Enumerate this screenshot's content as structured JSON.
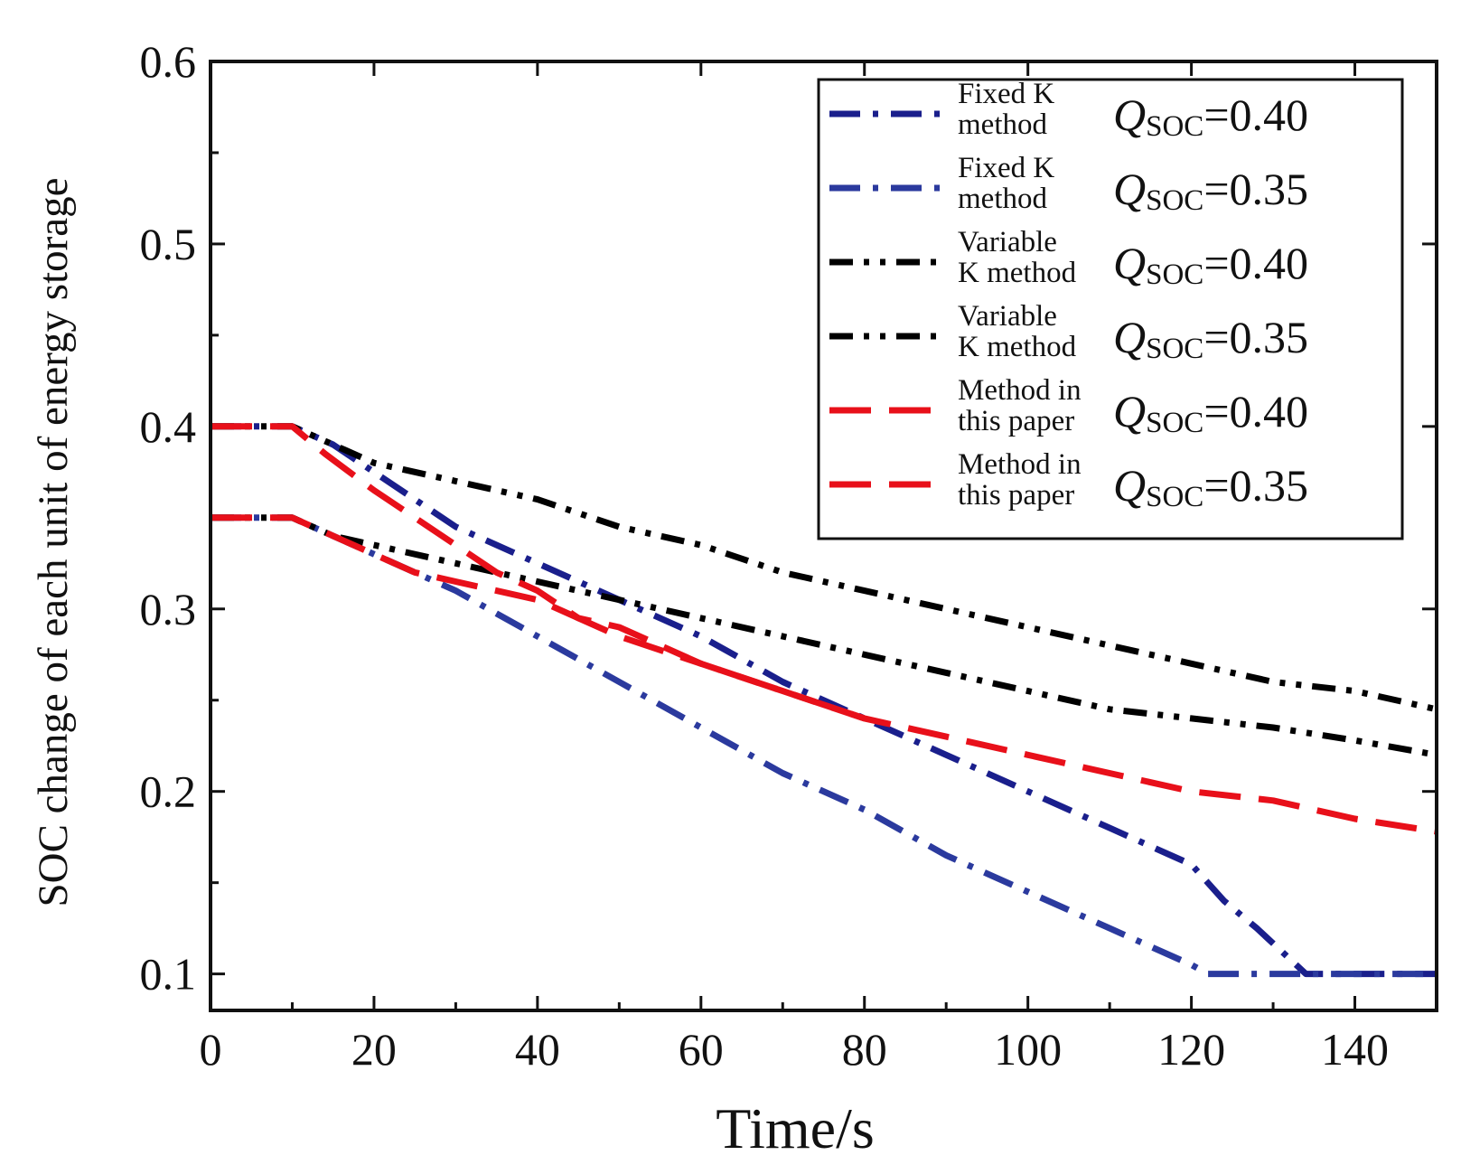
{
  "chart_data": {
    "type": "line",
    "xlabel": "Time/s",
    "ylabel": "SOC change of each unit of energy storage",
    "xlim": [
      0,
      150
    ],
    "ylim": [
      0.08,
      0.6
    ],
    "xticks": [
      0,
      20,
      40,
      60,
      80,
      100,
      120,
      140
    ],
    "xtick_labels": [
      "0",
      "20",
      "40",
      "60",
      "80",
      "100",
      "120",
      "140"
    ],
    "yticks": [
      0.1,
      0.2,
      0.3,
      0.4,
      0.5,
      0.6
    ],
    "ytick_labels": [
      "0.1",
      "0.2",
      "0.3",
      "0.4",
      "0.5",
      "0.6"
    ],
    "grid": false,
    "legend_position": "top-right",
    "series": [
      {
        "name": "Fixed K method",
        "line1": "Fixed K",
        "line2": "method",
        "q_symbol": "Q",
        "q_subscript": "SOC",
        "q_value": "=0.40",
        "color": "#1a1f8c",
        "style": "dashdot",
        "x": [
          0,
          10,
          15,
          20,
          30,
          40,
          50,
          60,
          70,
          80,
          90,
          100,
          110,
          120,
          124,
          128,
          134,
          150
        ],
        "y": [
          0.4,
          0.4,
          0.39,
          0.375,
          0.345,
          0.325,
          0.305,
          0.285,
          0.26,
          0.24,
          0.22,
          0.2,
          0.18,
          0.16,
          0.14,
          0.125,
          0.1,
          0.1
        ]
      },
      {
        "name": "Fixed K method",
        "line1": "Fixed K",
        "line2": "method",
        "q_symbol": "Q",
        "q_subscript": "SOC",
        "q_value": "=0.35",
        "color": "#2b3a9e",
        "style": "dashdot",
        "x": [
          0,
          10,
          15,
          20,
          30,
          40,
          50,
          60,
          70,
          80,
          90,
          100,
          110,
          120,
          122,
          150
        ],
        "y": [
          0.35,
          0.35,
          0.34,
          0.33,
          0.31,
          0.285,
          0.26,
          0.235,
          0.21,
          0.19,
          0.165,
          0.145,
          0.125,
          0.105,
          0.1,
          0.1
        ]
      },
      {
        "name": "Variable K method",
        "line1": "Variable",
        "line2": "K method",
        "q_symbol": "Q",
        "q_subscript": "SOC",
        "q_value": "=0.40",
        "color": "#000000",
        "style": "dashdotdot",
        "x": [
          0,
          10,
          15,
          20,
          30,
          40,
          50,
          60,
          70,
          80,
          90,
          100,
          110,
          120,
          130,
          140,
          150
        ],
        "y": [
          0.4,
          0.4,
          0.39,
          0.38,
          0.37,
          0.36,
          0.345,
          0.335,
          0.32,
          0.31,
          0.3,
          0.29,
          0.28,
          0.27,
          0.26,
          0.255,
          0.245
        ]
      },
      {
        "name": "Variable K method",
        "line1": "Variable",
        "line2": "K method",
        "q_symbol": "Q",
        "q_subscript": "SOC",
        "q_value": "=0.35",
        "color": "#000000",
        "style": "dashdotdot",
        "x": [
          0,
          10,
          15,
          20,
          30,
          40,
          50,
          60,
          70,
          80,
          90,
          100,
          110,
          120,
          130,
          140,
          150
        ],
        "y": [
          0.35,
          0.35,
          0.34,
          0.335,
          0.325,
          0.315,
          0.305,
          0.295,
          0.285,
          0.275,
          0.265,
          0.255,
          0.245,
          0.24,
          0.235,
          0.228,
          0.22
        ]
      },
      {
        "name": "Method in this paper",
        "line1": "Method in",
        "line2": "this paper",
        "q_symbol": "Q",
        "q_subscript": "SOC",
        "q_value": "=0.40",
        "color": "#e8101a",
        "style": "longdash",
        "x": [
          0,
          10,
          14,
          20,
          25,
          30,
          35,
          40,
          45,
          50,
          60,
          70,
          80,
          90,
          100,
          110,
          120,
          130,
          140,
          150
        ],
        "y": [
          0.4,
          0.4,
          0.385,
          0.365,
          0.35,
          0.335,
          0.32,
          0.31,
          0.295,
          0.285,
          0.27,
          0.255,
          0.24,
          0.23,
          0.22,
          0.21,
          0.2,
          0.195,
          0.185,
          0.178
        ]
      },
      {
        "name": "Method in this paper",
        "line1": "Method in",
        "line2": "this paper",
        "q_symbol": "Q",
        "q_subscript": "SOC",
        "q_value": "=0.35",
        "color": "#e8101a",
        "style": "longdash",
        "x": [
          0,
          10,
          15,
          20,
          25,
          30,
          35,
          40,
          45,
          50,
          60,
          70,
          80
        ],
        "y": [
          0.35,
          0.35,
          0.34,
          0.33,
          0.32,
          0.315,
          0.31,
          0.305,
          0.295,
          0.29,
          0.27,
          0.255,
          0.24
        ]
      }
    ]
  }
}
